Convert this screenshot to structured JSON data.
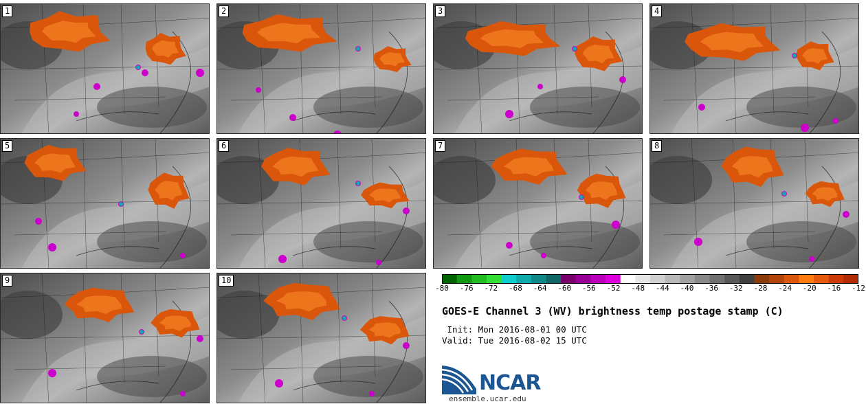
{
  "panels": [
    "1",
    "2",
    "3",
    "4",
    "5",
    "6",
    "7",
    "8",
    "9",
    "10"
  ],
  "colorbar": {
    "colors": [
      "#006400",
      "#119911",
      "#22bb22",
      "#33dd33",
      "#11cccc",
      "#11aaaa",
      "#118888",
      "#116666",
      "#7a006e",
      "#990099",
      "#bb00bb",
      "#dd00dd",
      "#ffffff",
      "#e6e6e6",
      "#cfcfcf",
      "#b8b8b8",
      "#a0a0a0",
      "#888888",
      "#707070",
      "#585858",
      "#404040",
      "#8b3a0a",
      "#b2460a",
      "#d9560b",
      "#ff7a10",
      "#e65a0d",
      "#cc3a08",
      "#b22d05"
    ],
    "tick_labels": [
      "-80",
      "-76",
      "-72",
      "-68",
      "-64",
      "-60",
      "-56",
      "-52",
      "-48",
      "-44",
      "-40",
      "-36",
      "-32",
      "-28",
      "-24",
      "-20",
      "-16",
      "-12"
    ]
  },
  "title": "GOES-E Channel 3 (WV) brightness temp postage stamp (C)",
  "init_line": " Init: Mon 2016-08-01 00 UTC",
  "valid_line": "Valid: Tue 2016-08-02 15 UTC",
  "logo_text": "NCAR",
  "website": "ensemble.ucar.edu"
}
